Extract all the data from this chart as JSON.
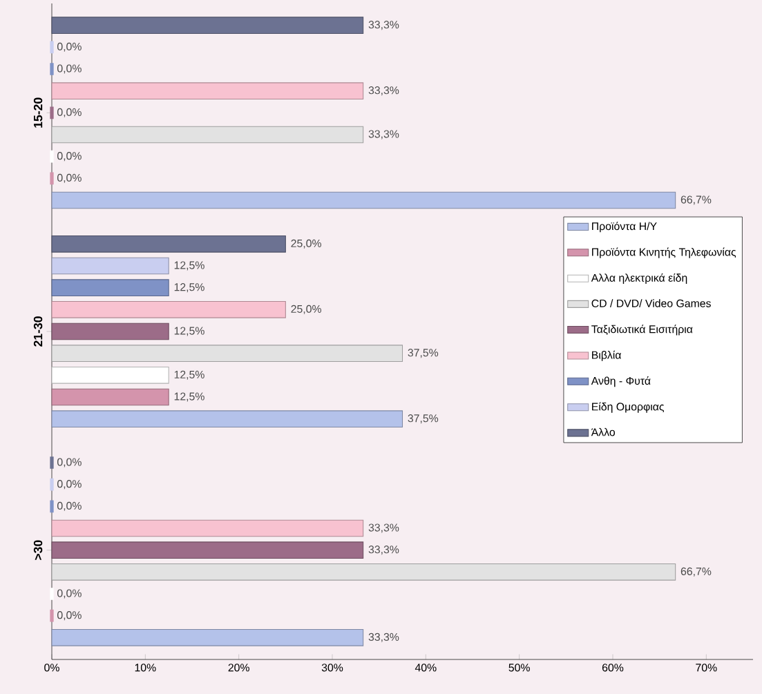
{
  "chart_data": {
    "type": "bar",
    "orientation": "horizontal",
    "categories": [
      "15-20",
      "21-30",
      ">30"
    ],
    "series": [
      {
        "name": "Προϊόντα Η/Υ",
        "color": "#b4c2ea",
        "values": [
          66.7,
          37.5,
          33.3
        ],
        "value_labels": [
          "66,7%",
          "37,5%",
          "33,3%"
        ]
      },
      {
        "name": "Προϊόντα Κινητής Τηλεφωνίας",
        "color": "#d494ac",
        "values": [
          0.0,
          12.5,
          0.0
        ],
        "value_labels": [
          "0,0%",
          "12,5%",
          "0,0%"
        ]
      },
      {
        "name": "Αλλα ηλεκτρικά είδη",
        "color": "#ffffff",
        "values": [
          0.0,
          12.5,
          0.0
        ],
        "value_labels": [
          "0,0%",
          "12,5%",
          "0,0%"
        ]
      },
      {
        "name": "CD / DVD/ Video Games",
        "color": "#e2e2e2",
        "values": [
          33.3,
          37.5,
          66.7
        ],
        "value_labels": [
          "33,3%",
          "37,5%",
          "66,7%"
        ]
      },
      {
        "name": "Ταξιδιωτικά Εισιτήρια",
        "color": "#9c6c88",
        "values": [
          0.0,
          12.5,
          33.3
        ],
        "value_labels": [
          "0,0%",
          "12,5%",
          "33,3%"
        ]
      },
      {
        "name": "Βιβλία",
        "color": "#f8c2d0",
        "values": [
          33.3,
          25.0,
          33.3
        ],
        "value_labels": [
          "33,3%",
          "25,0%",
          "33,3%"
        ]
      },
      {
        "name": "Ανθη - Φυτά",
        "color": "#7f92c6",
        "values": [
          0.0,
          12.5,
          0.0
        ],
        "value_labels": [
          "0,0%",
          "12,5%",
          "0,0%"
        ]
      },
      {
        "name": "Είδη Ομορφιας",
        "color": "#c9cef0",
        "values": [
          0.0,
          12.5,
          0.0
        ],
        "value_labels": [
          "0,0%",
          "12,5%",
          "0,0%"
        ]
      },
      {
        "name": "Άλλο",
        "color": "#6c7292",
        "values": [
          33.3,
          25.0,
          0.0
        ],
        "value_labels": [
          "33,3%",
          "25,0%",
          "0,0%"
        ]
      }
    ],
    "xlim": [
      0,
      75
    ],
    "xticks": [
      {
        "value": 0,
        "label": "0%"
      },
      {
        "value": 10,
        "label": "10%"
      },
      {
        "value": 20,
        "label": "20%"
      },
      {
        "value": 30,
        "label": "30%"
      },
      {
        "value": 40,
        "label": "40%"
      },
      {
        "value": 50,
        "label": "50%"
      },
      {
        "value": 60,
        "label": "60%"
      },
      {
        "value": 70,
        "label": "70%"
      }
    ],
    "legend": "right",
    "grid": false
  }
}
